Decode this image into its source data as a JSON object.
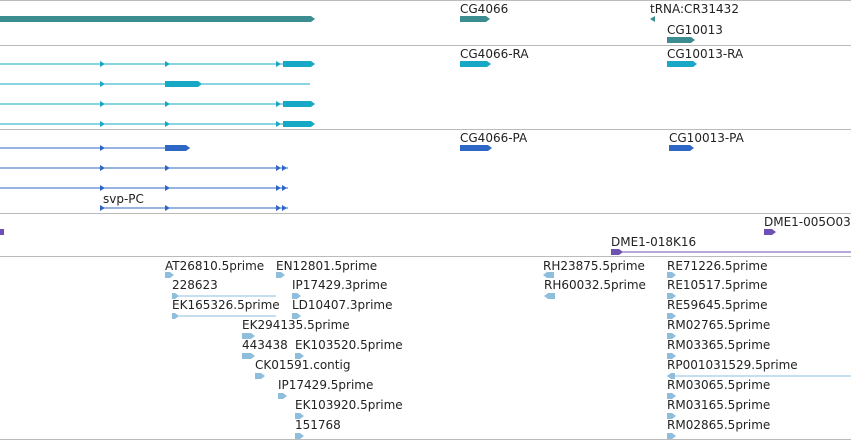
{
  "colors": {
    "gene": "#3b8d8f",
    "transcript": "#17a8c5",
    "cds": "#2f67c6",
    "clone": "#6d52b2",
    "est": "#8fbedc",
    "divider": "#bbbbbb"
  },
  "tracks": {
    "gene": {
      "labels": [
        {
          "id": "cg4066",
          "text": "CG4066"
        },
        {
          "id": "trna",
          "text": "tRNA:CR31432"
        },
        {
          "id": "cg10013",
          "text": "CG10013"
        }
      ]
    },
    "transcripts": {
      "labels": [
        {
          "id": "cg4066-ra",
          "text": "CG4066-RA"
        },
        {
          "id": "cg10013-ra",
          "text": "CG10013-RA"
        }
      ]
    },
    "cds": {
      "labels": [
        {
          "id": "cg4066-pa",
          "text": "CG4066-PA"
        },
        {
          "id": "cg10013-pa",
          "text": "CG10013-PA"
        },
        {
          "id": "svp-pc",
          "text": "svp-PC"
        }
      ]
    },
    "clones": {
      "labels": [
        {
          "id": "dme1-005o03",
          "text": "DME1-005O03"
        },
        {
          "id": "dme1-018k16",
          "text": "DME1-018K16"
        }
      ]
    },
    "ests": {
      "labels": [
        {
          "id": "at26810",
          "text": "AT26810.5prime"
        },
        {
          "id": "en12801",
          "text": "EN12801.5prime"
        },
        {
          "id": "rh23875",
          "text": "RH23875.5prime"
        },
        {
          "id": "re71226",
          "text": "RE71226.5prime"
        },
        {
          "id": "228623",
          "text": "228623"
        },
        {
          "id": "ip17429-3",
          "text": "IP17429.3prime"
        },
        {
          "id": "rh60032",
          "text": "RH60032.5prime"
        },
        {
          "id": "re10517",
          "text": "RE10517.5prime"
        },
        {
          "id": "ek165326",
          "text": "EK165326.5prime"
        },
        {
          "id": "ld10407",
          "text": "LD10407.3prime"
        },
        {
          "id": "re59645",
          "text": "RE59645.5prime"
        },
        {
          "id": "ek294135",
          "text": "EK294135.5prime"
        },
        {
          "id": "rm02765",
          "text": "RM02765.5prime"
        },
        {
          "id": "443438",
          "text": "443438"
        },
        {
          "id": "ek103520",
          "text": "EK103520.5prime"
        },
        {
          "id": "rm03365",
          "text": "RM03365.5prime"
        },
        {
          "id": "ck01591",
          "text": "CK01591.contig"
        },
        {
          "id": "rp001031529",
          "text": "RP001031529.5prime"
        },
        {
          "id": "ip17429-5",
          "text": "IP17429.5prime"
        },
        {
          "id": "rm03065",
          "text": "RM03065.5prime"
        },
        {
          "id": "ek103920",
          "text": "EK103920.5prime"
        },
        {
          "id": "rm03165",
          "text": "RM03165.5prime"
        },
        {
          "id": "151768",
          "text": "151768"
        },
        {
          "id": "rm02865",
          "text": "RM02865.5prime"
        }
      ]
    }
  }
}
